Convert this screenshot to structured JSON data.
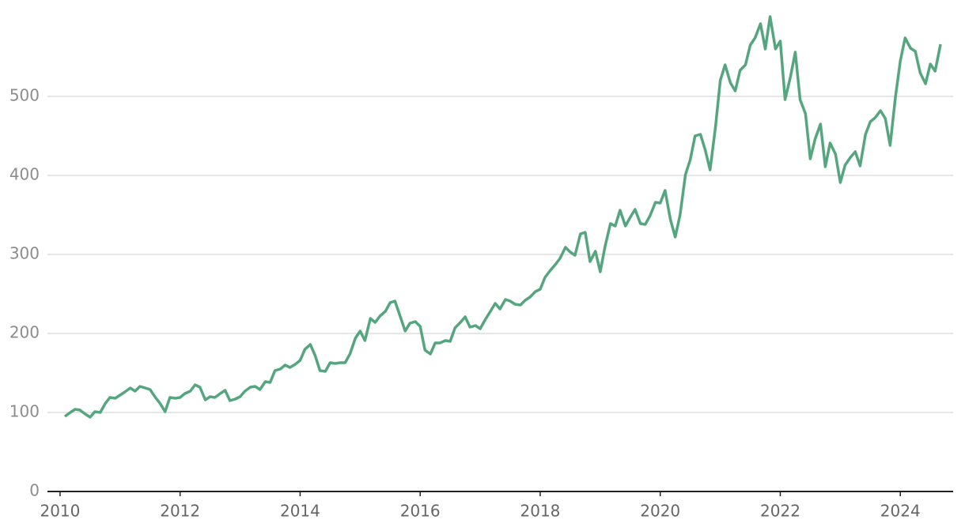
{
  "chart_data": {
    "type": "line",
    "x": [
      2010.08,
      2010.17,
      2010.25,
      2010.33,
      2010.42,
      2010.5,
      2010.58,
      2010.67,
      2010.75,
      2010.83,
      2010.92,
      2011.0,
      2011.08,
      2011.17,
      2011.25,
      2011.33,
      2011.42,
      2011.5,
      2011.58,
      2011.67,
      2011.75,
      2011.83,
      2011.92,
      2012.0,
      2012.08,
      2012.17,
      2012.25,
      2012.33,
      2012.42,
      2012.5,
      2012.58,
      2012.67,
      2012.75,
      2012.83,
      2012.92,
      2013.0,
      2013.08,
      2013.17,
      2013.25,
      2013.33,
      2013.42,
      2013.5,
      2013.58,
      2013.67,
      2013.75,
      2013.83,
      2013.92,
      2014.0,
      2014.08,
      2014.17,
      2014.25,
      2014.33,
      2014.42,
      2014.5,
      2014.58,
      2014.67,
      2014.75,
      2014.83,
      2014.92,
      2015.0,
      2015.08,
      2015.17,
      2015.25,
      2015.33,
      2015.42,
      2015.5,
      2015.58,
      2015.67,
      2015.75,
      2015.83,
      2015.92,
      2016.0,
      2016.08,
      2016.17,
      2016.25,
      2016.33,
      2016.42,
      2016.5,
      2016.58,
      2016.67,
      2016.75,
      2016.83,
      2016.92,
      2017.0,
      2017.08,
      2017.17,
      2017.25,
      2017.33,
      2017.42,
      2017.5,
      2017.58,
      2017.67,
      2017.75,
      2017.83,
      2017.92,
      2018.0,
      2018.08,
      2018.17,
      2018.25,
      2018.33,
      2018.42,
      2018.5,
      2018.58,
      2018.67,
      2018.75,
      2018.83,
      2018.92,
      2019.0,
      2019.08,
      2019.17,
      2019.25,
      2019.33,
      2019.42,
      2019.5,
      2019.58,
      2019.67,
      2019.75,
      2019.83,
      2019.92,
      2020.0,
      2020.08,
      2020.17,
      2020.25,
      2020.33,
      2020.42,
      2020.5,
      2020.58,
      2020.67,
      2020.75,
      2020.83,
      2020.92,
      2021.0,
      2021.08,
      2021.17,
      2021.25,
      2021.33,
      2021.42,
      2021.5,
      2021.58,
      2021.67,
      2021.75,
      2021.83,
      2021.92,
      2022.0,
      2022.08,
      2022.17,
      2022.25,
      2022.33,
      2022.42,
      2022.5,
      2022.58,
      2022.67,
      2022.75,
      2022.83,
      2022.92,
      2023.0,
      2023.08,
      2023.17,
      2023.25,
      2023.33,
      2023.42,
      2023.5,
      2023.58,
      2023.67,
      2023.75,
      2023.83,
      2023.92,
      2024.0,
      2024.08,
      2024.17,
      2024.25,
      2024.33,
      2024.42,
      2024.5,
      2024.58,
      2024.67
    ],
    "series": [
      {
        "color": "#55a67f",
        "values": [
          95,
          100,
          104,
          103,
          98,
          94,
          101,
          100,
          111,
          119,
          118,
          122,
          126,
          131,
          127,
          133,
          131,
          129,
          120,
          111,
          101,
          119,
          118,
          119,
          124,
          127,
          135,
          132,
          116,
          120,
          119,
          124,
          128,
          115,
          117,
          120,
          127,
          132,
          133,
          129,
          139,
          138,
          153,
          155,
          160,
          157,
          161,
          166,
          180,
          186,
          172,
          153,
          152,
          163,
          162,
          163,
          163,
          174,
          194,
          203,
          191,
          219,
          214,
          222,
          228,
          239,
          241,
          221,
          203,
          213,
          215,
          209,
          179,
          174,
          188,
          188,
          191,
          190,
          207,
          214,
          221,
          208,
          210,
          206,
          217,
          228,
          238,
          231,
          243,
          241,
          237,
          236,
          242,
          246,
          253,
          256,
          271,
          280,
          287,
          295,
          309,
          303,
          299,
          326,
          328,
          291,
          304,
          278,
          310,
          339,
          336,
          356,
          336,
          347,
          357,
          339,
          338,
          349,
          366,
          365,
          381,
          344,
          322,
          350,
          401,
          420,
          450,
          452,
          432,
          407,
          461,
          520,
          540,
          517,
          507,
          533,
          540,
          565,
          574,
          592,
          560,
          601,
          560,
          570,
          496,
          525,
          556,
          496,
          478,
          421,
          446,
          465,
          411,
          441,
          427,
          391,
          413,
          423,
          430,
          412,
          452,
          468,
          473,
          482,
          472,
          438,
          500,
          545,
          574,
          561,
          557,
          530,
          516,
          541,
          532,
          566
        ]
      }
    ],
    "xlim": [
      2009.79,
      2024.88
    ],
    "xticks": [
      2010,
      2012,
      2014,
      2016,
      2018,
      2020,
      2022,
      2024
    ],
    "ylim": [
      0,
      600
    ],
    "yticks": [
      0,
      100,
      200,
      300,
      400,
      500
    ],
    "grid": true
  }
}
